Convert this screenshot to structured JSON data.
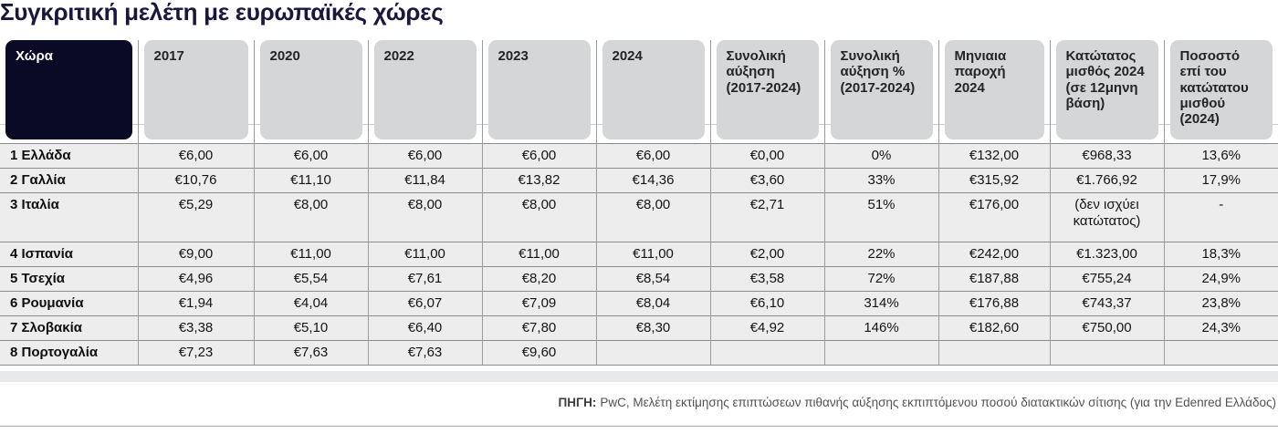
{
  "title": "Συγκριτική μελέτη με ευρωπαϊκές χώρες",
  "chart_data": {
    "type": "table",
    "title": "Συγκριτική μελέτη με ευρωπαϊκές χώρες",
    "columns": [
      "Χώρα",
      "2017",
      "2020",
      "2022",
      "2023",
      "2024",
      "Συνολική αύξηση (2017-2024)",
      "Συνολική αύξηση % (2017-2024)",
      "Μηνιαια παροχή 2024",
      "Κατώτατος μισθός 2024 (σε 12μηνη βάση)",
      "Ποσοστό επί του κατώτατου μισθού (2024)"
    ],
    "rows": [
      [
        "1 Ελλάδα",
        "€6,00",
        "€6,00",
        "€6,00",
        "€6,00",
        "€6,00",
        "€0,00",
        "0%",
        "€132,00",
        "€968,33",
        "13,6%"
      ],
      [
        "2 Γαλλία",
        "€10,76",
        "€11,10",
        "€11,84",
        "€13,82",
        "€14,36",
        "€3,60",
        "33%",
        "€315,92",
        "€1.766,92",
        "17,9%"
      ],
      [
        "3 Ιταλία",
        "€5,29",
        "€8,00",
        "€8,00",
        "€8,00",
        "€8,00",
        "€2,71",
        "51%",
        "€176,00",
        "(δεν ισχύει κατώτατος)",
        "-"
      ],
      [
        "4 Ισπανία",
        "€9,00",
        "€11,00",
        "€11,00",
        "€11,00",
        "€11,00",
        "€2,00",
        "22%",
        "€242,00",
        "€1.323,00",
        "18,3%"
      ],
      [
        "5 Τσεχία",
        "€4,96",
        "€5,54",
        "€7,61",
        "€8,20",
        "€8,54",
        "€3,58",
        "72%",
        "€187,88",
        "€755,24",
        "24,9%"
      ],
      [
        "6 Ρουμανία",
        "€1,94",
        "€4,04",
        "€6,07",
        "€7,09",
        "€8,04",
        "€6,10",
        "314%",
        "€176,88",
        "€743,37",
        "23,8%"
      ],
      [
        "7 Σλοβακία",
        "€3,38",
        "€5,10",
        "€6,40",
        "€7,80",
        "€8,30",
        "€4,92",
        "146%",
        "€182,60",
        "€750,00",
        "24,3%"
      ],
      [
        "8 Πορτογαλία",
        "€7,23",
        "€7,63",
        "€7,63",
        "€9,60",
        "",
        "",
        "",
        "",
        "",
        ""
      ]
    ],
    "source": "ΠΗΓΗ: PwC, Μελέτη εκτίμησης επιπτώσεων πιθανής αύξησης εκπιπτόμενου ποσού διατακτικών σίτισης (για την Edenred Ελλάδος)",
    "layout_hints": {
      "grid": "on",
      "header_style": "rounded gray boxes, first column dark navy"
    }
  },
  "header_display": {
    "labels": [
      "Χώρα",
      "2017",
      "2020",
      "2022",
      "2023",
      "2024",
      "Συνολική\nαύξηση\n(2017-2024)",
      "Συνολική\nαύξηση %\n(2017-2024)",
      "Μηνιαια\nπαροχή\n2024",
      "Κατώτατος\nμισθός 2024\n(σε 12μηνη\nβάση)",
      "Ποσοστό\nεπί του\nκατώτατου\nμισθού\n(2024)"
    ]
  },
  "footer": {
    "label": "ΠΗΓΗ:",
    "text": "PwC, Μελέτη εκτίμησης επιπτώσεων πιθανής αύξησης εκπιπτόμενου ποσού διατακτικών σίτισης (για την Edenred Ελλάδος)"
  },
  "colors": {
    "title_text": "#18183f",
    "country_header_bg": "#0a0a26",
    "header_box_bg": "#d5d6d7",
    "row_bg": "#ededee",
    "grid_vertical": "#9c9c9c",
    "grid_horizontal": "#8d8d8d",
    "footer_text": "#525252"
  }
}
